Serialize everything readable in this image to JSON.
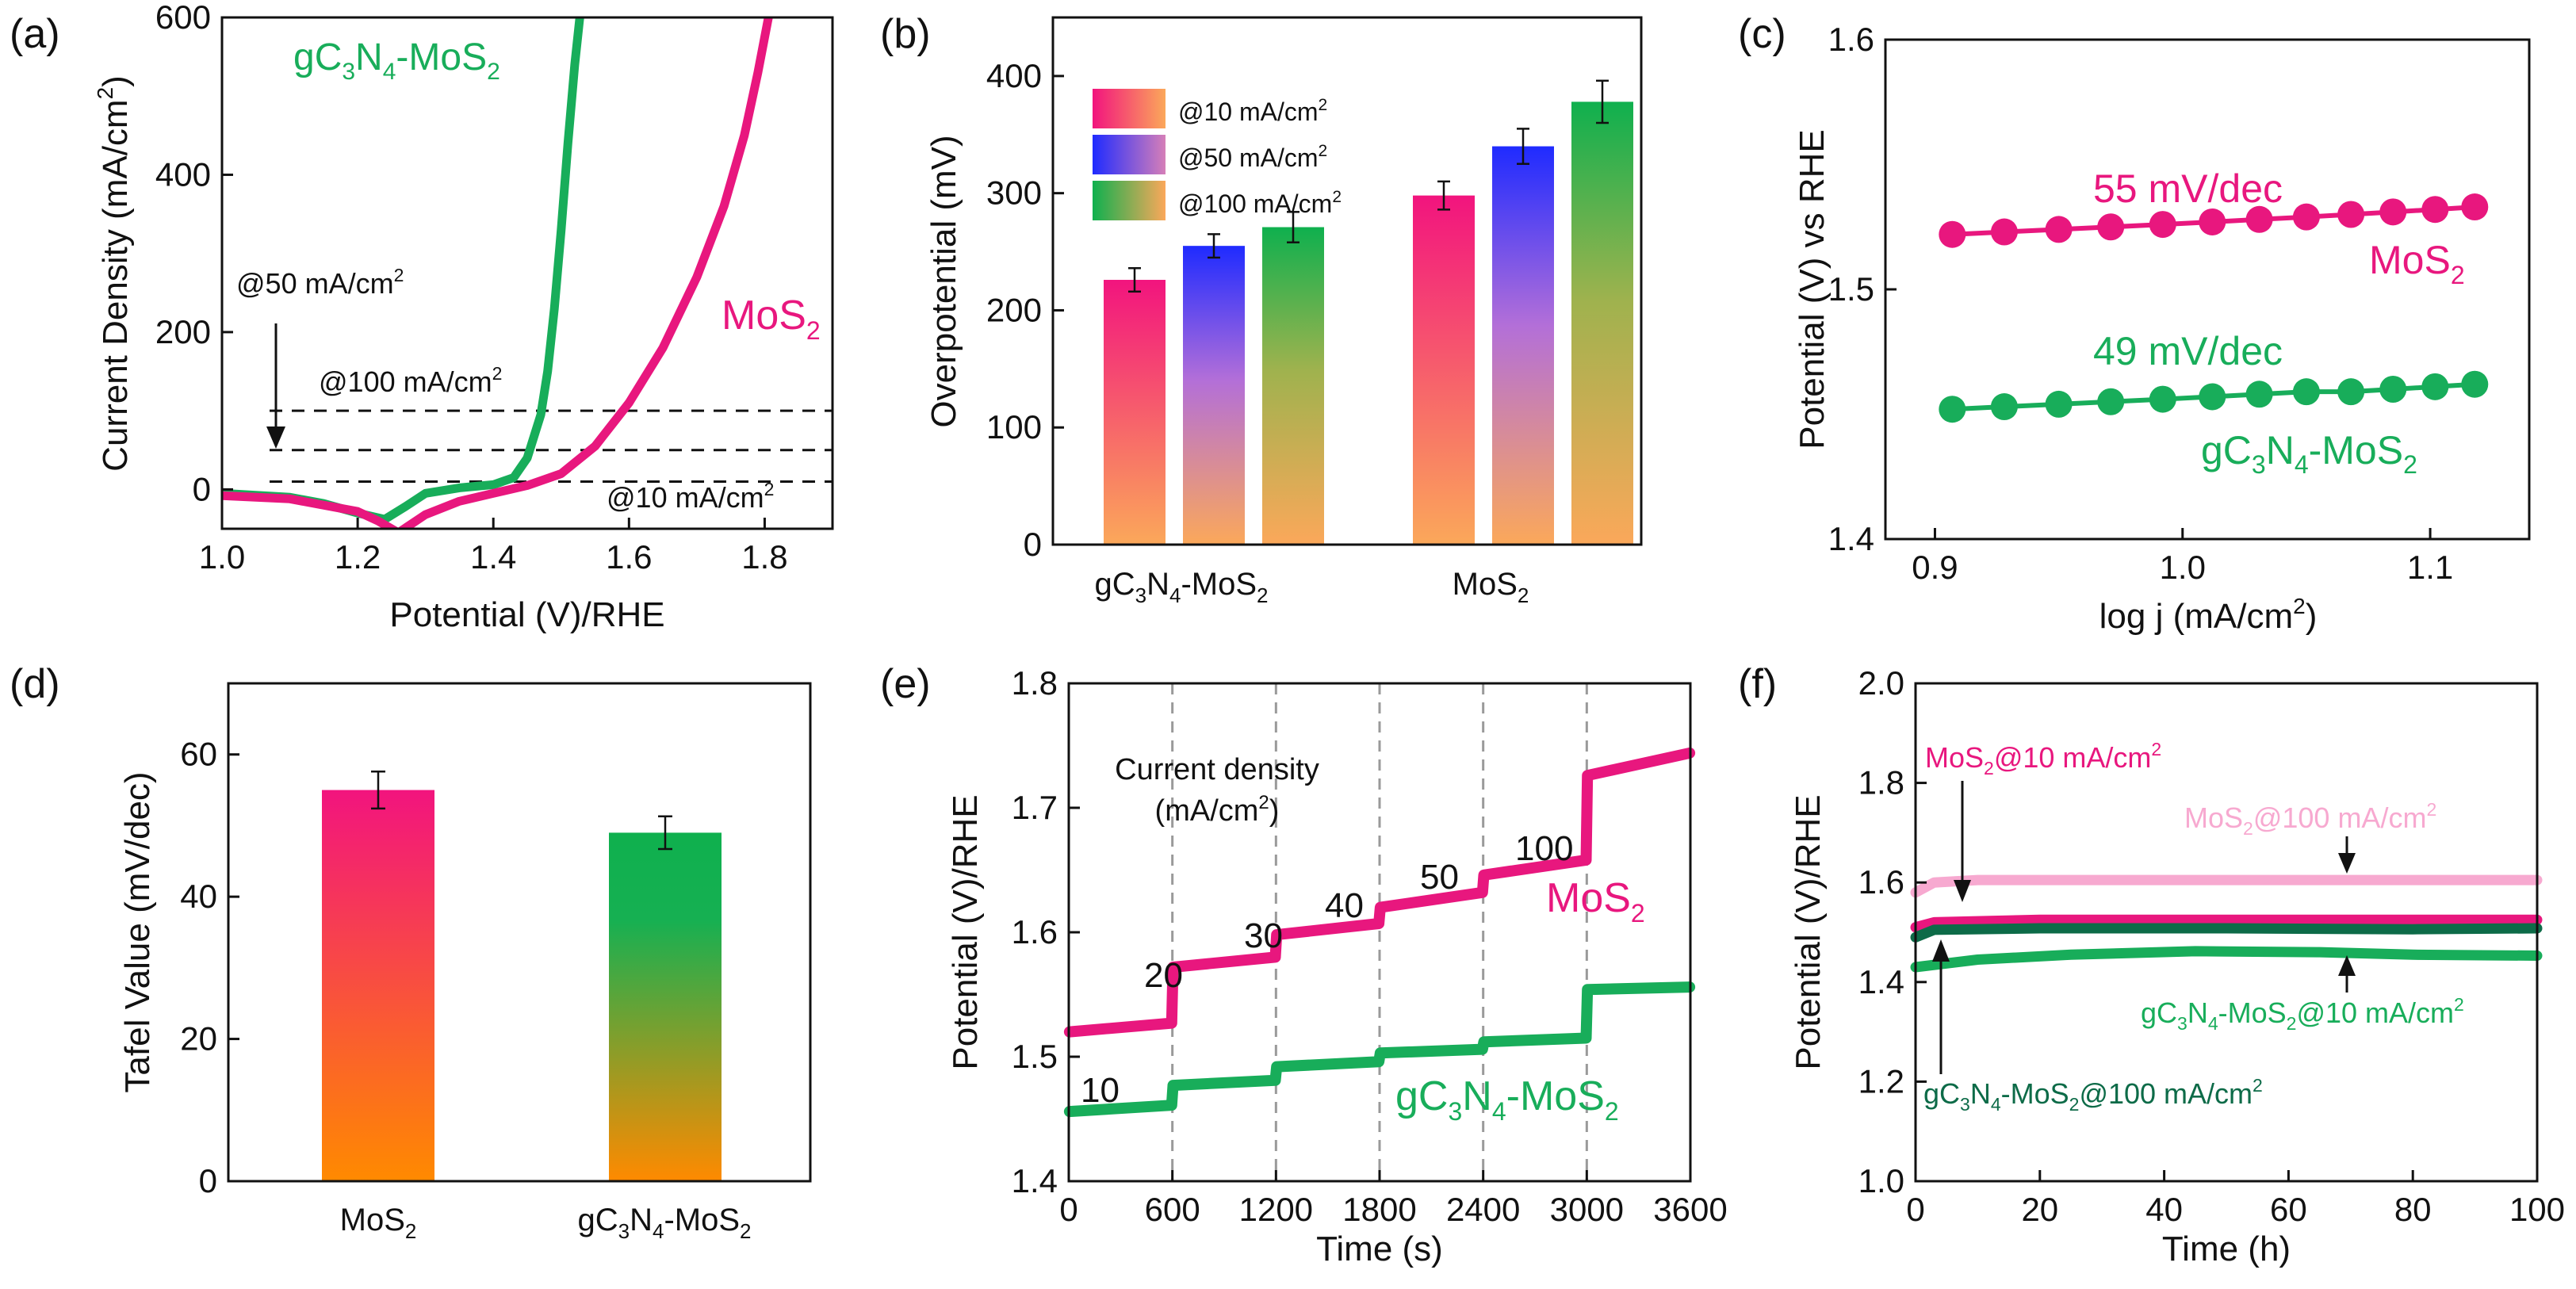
{
  "colors": {
    "mos2": "#e8177e",
    "gc3n4": "#18ad5a",
    "gc3n4_dark": "#0d6b48",
    "mos2_light": "#f7a9d0",
    "bar_pink_top": "#f2147e",
    "bar_orange": "#fba85a",
    "bar_blue": "#2233ee",
    "bar_green": "#0fb04e",
    "bar_orange_d": "#ff8a00",
    "axis": "#111111",
    "dash": "#9a9a9a"
  },
  "chart_data": [
    {
      "id": "a",
      "panel_label": "(a)",
      "type": "line",
      "xlabel": "Potential (V)/RHE",
      "ylabel_main": "Current Density (mA/cm",
      "ylabel_sup": "2",
      "ylabel_end": ")",
      "xlim": [
        1.0,
        1.9
      ],
      "ylim": [
        -50,
        600
      ],
      "xticks": [
        1.0,
        1.2,
        1.4,
        1.6,
        1.8
      ],
      "xtick_labels": [
        "1.0",
        "1.2",
        "1.4",
        "1.6",
        "1.8"
      ],
      "yticks": [
        0,
        200,
        400,
        600
      ],
      "ytick_labels": [
        "0",
        "200",
        "400",
        "600"
      ],
      "reference_lines": [
        10,
        50,
        100
      ],
      "annotations": {
        "at50": {
          "main": "@50 mA/cm",
          "sup": "2"
        },
        "at100": {
          "main": "@100 mA/cm",
          "sup": "2"
        },
        "at10": {
          "main": "@10 mA/cm",
          "sup": "2"
        },
        "label_gc3n4": {
          "p1": "gC",
          "s1": "3",
          "p2": "N",
          "s2": "4",
          "p3": "-MoS",
          "s3": "2"
        },
        "label_mos2": {
          "p1": "MoS",
          "s1": "2"
        }
      },
      "series": [
        {
          "name": "gC3N4-MoS2",
          "color_key": "gc3n4",
          "x": [
            1.0,
            1.1,
            1.15,
            1.2,
            1.24,
            1.27,
            1.3,
            1.35,
            1.4,
            1.43,
            1.45,
            1.47,
            1.48,
            1.49,
            1.5,
            1.51,
            1.52,
            1.53
          ],
          "y": [
            -5,
            -10,
            -18,
            -30,
            -38,
            -22,
            -5,
            2,
            6,
            15,
            40,
            95,
            150,
            230,
            330,
            440,
            540,
            620
          ]
        },
        {
          "name": "MoS2",
          "color_key": "mos2",
          "x": [
            1.0,
            1.1,
            1.2,
            1.23,
            1.26,
            1.3,
            1.35,
            1.4,
            1.45,
            1.5,
            1.55,
            1.6,
            1.65,
            1.7,
            1.74,
            1.77,
            1.79,
            1.81
          ],
          "y": [
            -8,
            -12,
            -28,
            -40,
            -55,
            -32,
            -15,
            -5,
            5,
            20,
            55,
            110,
            180,
            270,
            360,
            450,
            530,
            620
          ]
        }
      ]
    },
    {
      "id": "b",
      "panel_label": "(b)",
      "type": "bar",
      "ylabel": "Overpotential (mV)",
      "ylim": [
        0,
        450
      ],
      "yticks": [
        0,
        100,
        200,
        300,
        400
      ],
      "ytick_labels": [
        "0",
        "100",
        "200",
        "300",
        "400"
      ],
      "categories": [
        {
          "p1": "gC",
          "s1": "3",
          "p2": "N",
          "s2": "4",
          "p3": "-MoS",
          "s3": "2"
        },
        {
          "p1": "MoS",
          "s1": "2",
          "p2": "",
          "s2": "",
          "p3": "",
          "s3": ""
        }
      ],
      "legend": [
        {
          "main": "@10 mA/cm",
          "sup": "2"
        },
        {
          "main": "@50 mA/cm",
          "sup": "2"
        },
        {
          "main": "@100 mA/cm",
          "sup": "2"
        }
      ],
      "series": [
        {
          "name": "@10 mA/cm2",
          "values": [
            226,
            298
          ],
          "errors": [
            10,
            12
          ]
        },
        {
          "name": "@50 mA/cm2",
          "values": [
            255,
            340
          ],
          "errors": [
            10,
            15
          ]
        },
        {
          "name": "@100 mA/cm2",
          "values": [
            271,
            378
          ],
          "errors": [
            13,
            18
          ]
        }
      ]
    },
    {
      "id": "c",
      "panel_label": "(c)",
      "type": "scatter",
      "xlabel_main": "log j (mA/cm",
      "xlabel_sup": "2",
      "xlabel_end": ")",
      "ylabel": "Potential (V) vs RHE",
      "xlim": [
        0.88,
        1.14
      ],
      "ylim": [
        1.4,
        1.6
      ],
      "xticks": [
        0.9,
        1.0,
        1.1
      ],
      "xtick_labels": [
        "0.9",
        "1.0",
        "1.1"
      ],
      "yticks": [
        1.4,
        1.5,
        1.6
      ],
      "ytick_labels": [
        "1.4",
        "1.5",
        "1.6"
      ],
      "annotations": {
        "slope_mos2": "55 mV/dec",
        "slope_gc3n4": "49 mV/dec",
        "label_mos2": {
          "p1": "MoS",
          "s1": "2"
        },
        "label_gc3n4": {
          "p1": "gC",
          "s1": "3",
          "p2": "N",
          "s2": "4",
          "p3": "-MoS",
          "s3": "2"
        }
      },
      "series": [
        {
          "name": "MoS2",
          "color_key": "mos2",
          "x": [
            0.907,
            0.928,
            0.95,
            0.971,
            0.992,
            1.012,
            1.031,
            1.05,
            1.068,
            1.085,
            1.102,
            1.118
          ],
          "y": [
            1.522,
            1.523,
            1.524,
            1.525,
            1.526,
            1.527,
            1.528,
            1.529,
            1.53,
            1.531,
            1.532,
            1.533
          ]
        },
        {
          "name": "gC3N4-MoS2",
          "color_key": "gc3n4",
          "x": [
            0.907,
            0.928,
            0.95,
            0.971,
            0.992,
            1.012,
            1.031,
            1.05,
            1.068,
            1.085,
            1.102,
            1.118
          ],
          "y": [
            1.452,
            1.453,
            1.454,
            1.455,
            1.456,
            1.457,
            1.458,
            1.459,
            1.459,
            1.46,
            1.461,
            1.462
          ]
        }
      ]
    },
    {
      "id": "d",
      "panel_label": "(d)",
      "type": "bar",
      "ylabel": "Tafel Value (mV/dec)",
      "ylim": [
        0,
        70
      ],
      "yticks": [
        0,
        20,
        40,
        60
      ],
      "ytick_labels": [
        "0",
        "20",
        "40",
        "60"
      ],
      "categories": [
        {
          "p1": "MoS",
          "s1": "2",
          "p2": "",
          "s2": "",
          "p3": "",
          "s3": ""
        },
        {
          "p1": "gC",
          "s1": "3",
          "p2": "N",
          "s2": "4",
          "p3": "-MoS",
          "s3": "2"
        }
      ],
      "values": [
        55,
        49
      ],
      "errors": [
        2.6,
        2.3
      ]
    },
    {
      "id": "e",
      "panel_label": "(e)",
      "type": "line",
      "xlabel": "Time (s)",
      "ylabel": "Potential (V)/RHE",
      "xlim": [
        0,
        3600
      ],
      "ylim": [
        1.4,
        1.8
      ],
      "xticks": [
        0,
        600,
        1200,
        1800,
        2400,
        3000,
        3600
      ],
      "xtick_labels": [
        "0",
        "600",
        "1200",
        "1800",
        "2400",
        "3000",
        "3600"
      ],
      "yticks": [
        1.4,
        1.5,
        1.6,
        1.7,
        1.8
      ],
      "ytick_labels": [
        "1.4",
        "1.5",
        "1.6",
        "1.7",
        "1.8"
      ],
      "step_boundaries": [
        600,
        1200,
        1800,
        2400,
        3000
      ],
      "current_density_title": "Current density",
      "current_density_unit": {
        "main": "(mA/cm",
        "sup": "2",
        "end": ")"
      },
      "step_labels": [
        "10",
        "20",
        "30",
        "40",
        "50",
        "100"
      ],
      "annotations": {
        "label_mos2": {
          "p1": "MoS",
          "s1": "2"
        },
        "label_gc3n4": {
          "p1": "gC",
          "s1": "3",
          "p2": "N",
          "s2": "4",
          "p3": "-MoS",
          "s3": "2"
        }
      },
      "series": [
        {
          "name": "MoS2",
          "color_key": "mos2",
          "steps": [
            [
              1.52,
              1.527
            ],
            [
              1.572,
              1.58
            ],
            [
              1.598,
              1.607
            ],
            [
              1.62,
              1.632
            ],
            [
              1.646,
              1.658
            ],
            [
              1.726,
              1.744
            ]
          ]
        },
        {
          "name": "gC3N4-MoS2",
          "color_key": "gc3n4",
          "steps": [
            [
              1.456,
              1.461
            ],
            [
              1.477,
              1.481
            ],
            [
              1.492,
              1.496
            ],
            [
              1.503,
              1.506
            ],
            [
              1.512,
              1.515
            ],
            [
              1.554,
              1.556
            ]
          ]
        }
      ]
    },
    {
      "id": "f",
      "panel_label": "(f)",
      "type": "line",
      "xlabel": "Time (h)",
      "ylabel": "Potential (V)/RHE",
      "xlim": [
        0,
        100
      ],
      "ylim": [
        1.0,
        2.0
      ],
      "xticks": [
        0,
        20,
        40,
        60,
        80,
        100
      ],
      "xtick_labels": [
        "0",
        "20",
        "40",
        "60",
        "80",
        "100"
      ],
      "yticks": [
        1.0,
        1.2,
        1.4,
        1.6,
        1.8,
        2.0
      ],
      "ytick_labels": [
        "1.0",
        "1.2",
        "1.4",
        "1.6",
        "1.8",
        "2.0"
      ],
      "labels": {
        "mos2_10": {
          "p1": "MoS",
          "s1": "2",
          "p2": "@10 mA/cm",
          "s2": "2"
        },
        "mos2_100": {
          "p1": "MoS",
          "s1": "2",
          "p2": "@100 mA/cm",
          "s2": "2"
        },
        "gc_10": {
          "p1": "gC",
          "s1": "3",
          "p2": "N",
          "s2": "4",
          "p3": "-MoS",
          "s3": "2",
          "p4": "@10 mA/cm",
          "s4": "2"
        },
        "gc_100": {
          "p1": "gC",
          "s1": "3",
          "p2": "N",
          "s2": "4",
          "p3": "-MoS",
          "s3": "2",
          "p4": "@100 mA/cm",
          "s4": "2"
        }
      },
      "series": [
        {
          "name": "MoS2@100 mA/cm2",
          "color_key": "mos2_light",
          "x": [
            0,
            3,
            10,
            40,
            70,
            100
          ],
          "y": [
            1.58,
            1.6,
            1.605,
            1.605,
            1.605,
            1.605
          ]
        },
        {
          "name": "MoS2@10 mA/cm2",
          "color_key": "mos2",
          "x": [
            0,
            3,
            20,
            50,
            80,
            100
          ],
          "y": [
            1.51,
            1.52,
            1.525,
            1.525,
            1.525,
            1.525
          ]
        },
        {
          "name": "gC3N4-MoS2@100 mA/cm2",
          "color_key": "gc3n4_dark",
          "x": [
            0,
            3,
            20,
            50,
            80,
            100
          ],
          "y": [
            1.49,
            1.505,
            1.508,
            1.508,
            1.506,
            1.508
          ]
        },
        {
          "name": "gC3N4-MoS2@10 mA/cm2",
          "color_key": "gc3n4",
          "x": [
            0,
            10,
            25,
            45,
            65,
            80,
            100
          ],
          "y": [
            1.43,
            1.445,
            1.455,
            1.462,
            1.46,
            1.455,
            1.453
          ]
        }
      ]
    }
  ]
}
